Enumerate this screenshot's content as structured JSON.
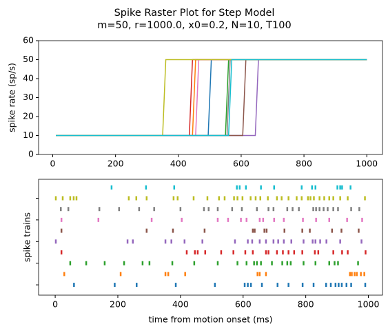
{
  "figure": {
    "title": "Spike Raster Plot for Step Model",
    "subtitle": "m=50, r=1000.0, x0=0.2, N=10, T100"
  },
  "chart_data": [
    {
      "type": "line",
      "ylabel": "spike rate (sp/s)",
      "xlim": [
        -45,
        1050
      ],
      "xticks": [
        0,
        200,
        400,
        600,
        800,
        1000
      ],
      "ylim": [
        0,
        60
      ],
      "yticks": [
        0,
        10,
        20,
        30,
        40,
        50,
        60
      ],
      "series": [
        {
          "color": "#1f77b4",
          "x": [
            10,
            495,
            505,
            1000
          ],
          "values": [
            10,
            10,
            50,
            50
          ]
        },
        {
          "color": "#ff7f0e",
          "x": [
            10,
            445,
            455,
            1000
          ],
          "values": [
            10,
            10,
            50,
            50
          ]
        },
        {
          "color": "#2ca02c",
          "x": [
            10,
            550,
            560,
            1000
          ],
          "values": [
            10,
            10,
            50,
            50
          ]
        },
        {
          "color": "#d62728",
          "x": [
            10,
            435,
            445,
            1000
          ],
          "values": [
            10,
            10,
            50,
            50
          ]
        },
        {
          "color": "#9467bd",
          "x": [
            10,
            645,
            655,
            1000
          ],
          "values": [
            10,
            10,
            50,
            50
          ]
        },
        {
          "color": "#8c564b",
          "x": [
            10,
            605,
            615,
            1000
          ],
          "values": [
            10,
            10,
            50,
            50
          ]
        },
        {
          "color": "#e377c2",
          "x": [
            10,
            455,
            465,
            1000
          ],
          "values": [
            10,
            10,
            50,
            50
          ]
        },
        {
          "color": "#7f7f7f",
          "x": [
            10,
            555,
            565,
            1000
          ],
          "values": [
            10,
            10,
            50,
            50
          ]
        },
        {
          "color": "#bcbd22",
          "x": [
            10,
            350,
            360,
            1000
          ],
          "values": [
            10,
            10,
            50,
            50
          ]
        },
        {
          "color": "#17becf",
          "x": [
            10,
            560,
            570,
            1000
          ],
          "values": [
            10,
            10,
            50,
            50
          ]
        }
      ]
    },
    {
      "type": "raster",
      "xlabel": "time from motion onset (ms)",
      "ylabel": "spike trains",
      "xlim": [
        -53,
        1045
      ],
      "xticks": [
        0,
        200,
        400,
        600,
        800,
        1000
      ],
      "ylim": [
        -0.95,
        9.75
      ],
      "yticks": [
        0,
        2,
        4,
        6,
        8
      ],
      "series": [
        {
          "color": "#1f77b4",
          "values": [
            60,
            190,
            260,
            385,
            510,
            605,
            615,
            625,
            660,
            710,
            745,
            790,
            825,
            865,
            880,
            895,
            905,
            915,
            930,
            945,
            990
          ]
        },
        {
          "color": "#ff7f0e",
          "values": [
            29,
            209,
            352,
            361,
            415,
            646,
            653,
            673,
            941,
            947,
            956,
            963,
            976,
            987
          ]
        },
        {
          "color": "#2ca02c",
          "values": [
            48,
            99,
            158,
            220,
            279,
            301,
            374,
            444,
            519,
            582,
            611,
            635,
            644,
            657,
            692,
            725,
            741,
            752,
            793,
            831,
            875,
            892,
            903,
            967
          ]
        },
        {
          "color": "#d62728",
          "values": [
            20,
            420,
            446,
            455,
            479,
            530,
            569,
            607,
            631,
            673,
            681,
            708,
            727,
            745,
            763,
            789,
            829,
            840,
            888,
            916,
            934,
            991
          ]
        },
        {
          "color": "#9467bd",
          "values": [
            2,
            231,
            248,
            352,
            371,
            413,
            470,
            574,
            615,
            629,
            653,
            673,
            697,
            712,
            730,
            754,
            793,
            822,
            831,
            846,
            866,
            910,
            978
          ]
        },
        {
          "color": "#8c564b",
          "values": [
            20,
            292,
            376,
            477,
            631,
            637,
            668,
            675,
            732,
            789,
            813,
            884,
            914,
            969
          ]
        },
        {
          "color": "#e377c2",
          "values": [
            20,
            138,
            308,
            404,
            519,
            552,
            593,
            611,
            653,
            664,
            699,
            730,
            791,
            833,
            875,
            932,
            980
          ]
        },
        {
          "color": "#7f7f7f",
          "values": [
            18,
            42,
            141,
            204,
            268,
            316,
            400,
            475,
            490,
            519,
            565,
            596,
            644,
            681,
            697,
            741,
            758,
            778,
            824,
            833,
            844,
            857,
            870,
            888,
            903,
            945,
            971
          ]
        },
        {
          "color": "#bcbd22",
          "values": [
            2,
            24,
            48,
            59,
            68,
            235,
            259,
            292,
            378,
            391,
            442,
            486,
            523,
            541,
            571,
            582,
            598,
            624,
            640,
            655,
            679,
            708,
            723,
            745,
            771,
            787,
            807,
            815,
            826,
            844,
            859,
            875,
            888,
            910,
            934,
            989
          ]
        },
        {
          "color": "#17becf",
          "values": [
            180,
            290,
            380,
            580,
            589,
            609,
            657,
            699,
            787,
            820,
            831,
            901,
            910,
            916,
            943
          ]
        }
      ]
    }
  ]
}
